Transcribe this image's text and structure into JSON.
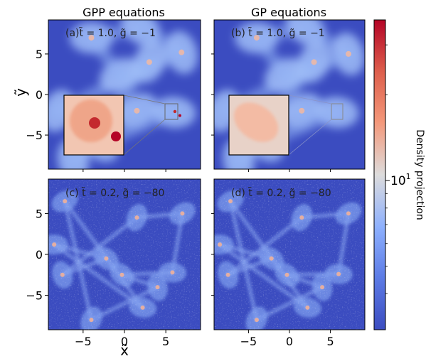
{
  "chart_data": {
    "type": "heatmap",
    "column_titles": [
      "GPP equations",
      "GP equations"
    ],
    "xlabel": "x̃",
    "ylabel": "ỹ",
    "xlim": [
      -9.2,
      9.2
    ],
    "ylim": [
      -9.2,
      9.2
    ],
    "xticks": [
      -5,
      0,
      5
    ],
    "yticks": [
      -5,
      0,
      5
    ],
    "xtick_labels": [
      "−5",
      "0",
      "5"
    ],
    "ytick_labels": [
      "−5",
      "0",
      "5"
    ],
    "colorbar": {
      "label": "Density projection",
      "scale": "log",
      "major_tick_label": "10",
      "major_tick_exponent": "1",
      "colormap": "coolwarm"
    },
    "panels": [
      {
        "label": "(a)t̃ = 1.0, g̃ = −1",
        "t": 1.0,
        "g": -1,
        "equations": "GPP equations",
        "inset": true,
        "blobs": [
          [
            -4,
            7
          ],
          [
            2,
            8.2
          ],
          [
            6.9,
            5.2
          ],
          [
            -8,
            -2
          ],
          [
            1.5,
            -2
          ],
          [
            6,
            -2.2
          ],
          [
            -3,
            -6
          ],
          [
            -6.2,
            -8.1
          ],
          [
            3,
            4
          ],
          [
            -0.5,
            2.4
          ]
        ]
      },
      {
        "label": "(b) t̃ = 1.0, g̃ = −1",
        "t": 1.0,
        "g": -1,
        "equations": "GP equations",
        "inset": true,
        "blobs": [
          [
            -4,
            7
          ],
          [
            2,
            8.2
          ],
          [
            7.2,
            5
          ],
          [
            -8,
            -2
          ],
          [
            1.5,
            -2
          ],
          [
            5.8,
            -2.2
          ],
          [
            -3,
            -6
          ],
          [
            -6.2,
            -8.1
          ],
          [
            3,
            4
          ],
          [
            -0.5,
            2.4
          ]
        ]
      },
      {
        "label": "(c) t̃ = 0.2, g̃ = −80",
        "t": 0.2,
        "g": -80,
        "equations": "GPP equations",
        "inset": false,
        "blobs": [
          [
            -8.5,
            1.2
          ],
          [
            -2.2,
            -0.5
          ],
          [
            -7.5,
            -2.5
          ],
          [
            1.5,
            4.5
          ],
          [
            7,
            5
          ],
          [
            5.8,
            -2.2
          ],
          [
            -0.3,
            -2.5
          ],
          [
            4,
            -4
          ],
          [
            -4,
            -8
          ],
          [
            -7.2,
            6.5
          ],
          [
            2.2,
            -6.5
          ]
        ]
      },
      {
        "label": "(d) t̃ = 0.2, g̃ = −80",
        "t": 0.2,
        "g": -80,
        "equations": "GP equations",
        "inset": false,
        "blobs": [
          [
            -8.5,
            1.2
          ],
          [
            -2.2,
            -0.5
          ],
          [
            -7.5,
            -2.5
          ],
          [
            1.5,
            4.5
          ],
          [
            7.2,
            5
          ],
          [
            6,
            -2.4
          ],
          [
            -0.3,
            -2.5
          ],
          [
            4,
            -4
          ],
          [
            -4,
            -8
          ],
          [
            -7.2,
            6.5
          ],
          [
            2.2,
            -6.5
          ]
        ]
      }
    ]
  },
  "colors": {
    "colormap_stops": [
      "#3b4cc0",
      "#7396f5",
      "#b0cbfc",
      "#dcdddd",
      "#f6bfa6",
      "#ea7b60",
      "#b40426"
    ],
    "background_low": "#3b4cc0",
    "frame": "#000000"
  }
}
